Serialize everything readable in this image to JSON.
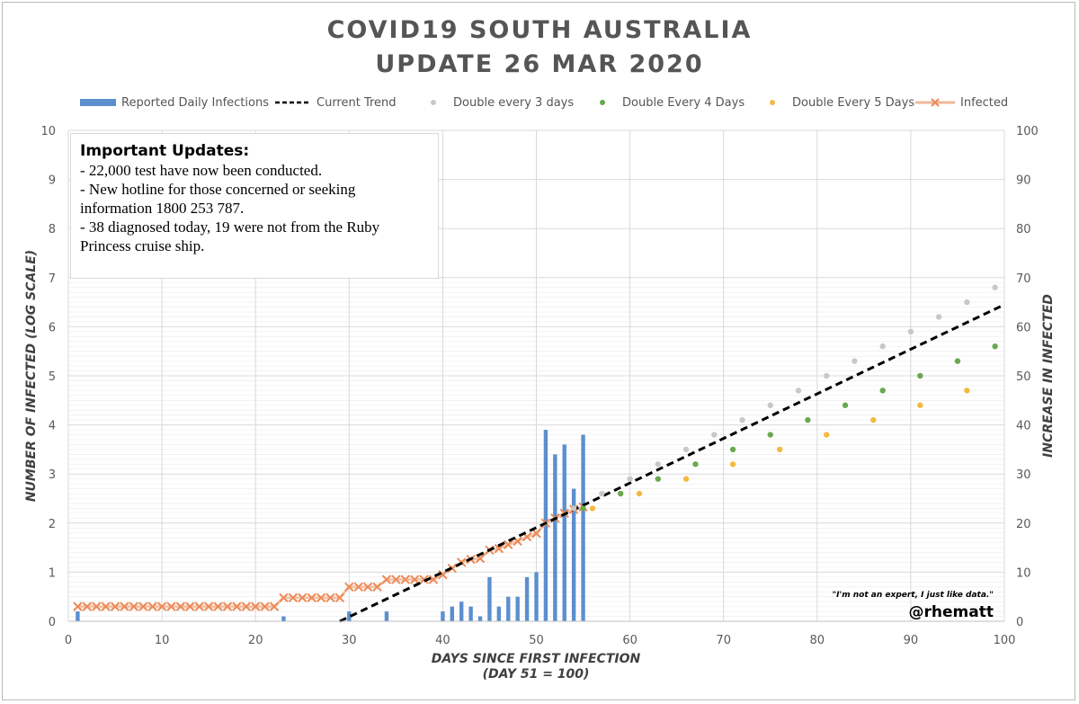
{
  "title": {
    "line1": "COVID19 SOUTH AUSTRALIA",
    "line2": "UPDATE 26 MAR 2020"
  },
  "legend": {
    "bar": "Reported Daily Infections",
    "trend": "Current Trend",
    "double3": "Double every 3 days",
    "double4": "Double Every 4 Days",
    "double5": "Double Every 5 Days",
    "infected": "Infected"
  },
  "annotation": {
    "heading": "Important Updates:",
    "lines": [
      "- 22,000 test have now been conducted.",
      "- New hotline for those concerned or seeking information 1800 253 787.",
      "- 38 diagnosed today, 19 were not from the Ruby Princess cruise ship."
    ]
  },
  "quote": "\"I'm not an expert, I just like data.\"",
  "handle": "@rhematt",
  "colors": {
    "bar": "#5b8fcf",
    "trend": "#000000",
    "double3": "#c8c8c8",
    "double4": "#6aa84f",
    "double5": "#f4b942",
    "infected": "#ec8a57",
    "grid": "#d9d9d9",
    "axisText": "#595959"
  },
  "chart_data": {
    "type": "bar+line+scatter",
    "xlabel": "DAYS SINCE FIRST INFECTION",
    "xlabel_sub": "(DAY 51 = 100)",
    "ylabel": "NUMBER OF INFECTED (LOG SCALE)",
    "y2label": "INCREASE IN INFECTED",
    "xlim": [
      0,
      100
    ],
    "ylim": [
      0,
      10
    ],
    "y2lim": [
      0,
      100
    ],
    "x_ticks": [
      0,
      10,
      20,
      30,
      40,
      50,
      60,
      70,
      80,
      90,
      100
    ],
    "y_ticks": [
      0,
      1,
      2,
      3,
      4,
      5,
      6,
      7,
      8,
      9,
      10
    ],
    "y2_ticks": [
      0,
      10,
      20,
      30,
      40,
      50,
      60,
      70,
      80,
      90,
      100
    ],
    "series": [
      {
        "name": "Reported Daily Infections",
        "type": "bar",
        "axis": "right",
        "points": [
          [
            1,
            2
          ],
          [
            23,
            1
          ],
          [
            30,
            2
          ],
          [
            34,
            2
          ],
          [
            40,
            2
          ],
          [
            41,
            3
          ],
          [
            42,
            4
          ],
          [
            43,
            3
          ],
          [
            44,
            1
          ],
          [
            45,
            9
          ],
          [
            46,
            3
          ],
          [
            47,
            5
          ],
          [
            48,
            5
          ],
          [
            49,
            9
          ],
          [
            50,
            10
          ],
          [
            51,
            39
          ],
          [
            52,
            34
          ],
          [
            53,
            36
          ],
          [
            54,
            27
          ],
          [
            55,
            38
          ]
        ]
      },
      {
        "name": "Current Trend",
        "type": "line-dashed",
        "axis": "left",
        "points": [
          [
            29,
            0
          ],
          [
            100,
            6.45
          ]
        ]
      },
      {
        "name": "Double every 3 days",
        "type": "scatter",
        "axis": "left",
        "points": [
          [
            54,
            2.3
          ],
          [
            57,
            2.6
          ],
          [
            60,
            2.9
          ],
          [
            63,
            3.2
          ],
          [
            66,
            3.5
          ],
          [
            69,
            3.8
          ],
          [
            72,
            4.1
          ],
          [
            75,
            4.4
          ],
          [
            78,
            4.7
          ],
          [
            81,
            5.0
          ],
          [
            84,
            5.3
          ],
          [
            87,
            5.6
          ],
          [
            90,
            5.9
          ],
          [
            93,
            6.2
          ],
          [
            96,
            6.5
          ],
          [
            99,
            6.8
          ]
        ]
      },
      {
        "name": "Double Every 4 Days",
        "type": "scatter",
        "axis": "left",
        "points": [
          [
            55,
            2.3
          ],
          [
            59,
            2.6
          ],
          [
            63,
            2.9
          ],
          [
            67,
            3.2
          ],
          [
            71,
            3.5
          ],
          [
            75,
            3.8
          ],
          [
            79,
            4.1
          ],
          [
            83,
            4.4
          ],
          [
            87,
            4.7
          ],
          [
            91,
            5.0
          ],
          [
            95,
            5.3
          ],
          [
            99,
            5.6
          ]
        ]
      },
      {
        "name": "Double Every 5 Days",
        "type": "scatter",
        "axis": "left",
        "points": [
          [
            56,
            2.3
          ],
          [
            61,
            2.6
          ],
          [
            66,
            2.9
          ],
          [
            71,
            3.2
          ],
          [
            76,
            3.5
          ],
          [
            81,
            3.8
          ],
          [
            86,
            4.1
          ],
          [
            91,
            4.4
          ],
          [
            96,
            4.7
          ]
        ]
      },
      {
        "name": "Infected",
        "type": "line-markers",
        "axis": "left",
        "points": [
          [
            1,
            0.3
          ],
          [
            2,
            0.3
          ],
          [
            3,
            0.3
          ],
          [
            4,
            0.3
          ],
          [
            5,
            0.3
          ],
          [
            6,
            0.3
          ],
          [
            7,
            0.3
          ],
          [
            8,
            0.3
          ],
          [
            9,
            0.3
          ],
          [
            10,
            0.3
          ],
          [
            11,
            0.3
          ],
          [
            12,
            0.3
          ],
          [
            13,
            0.3
          ],
          [
            14,
            0.3
          ],
          [
            15,
            0.3
          ],
          [
            16,
            0.3
          ],
          [
            17,
            0.3
          ],
          [
            18,
            0.3
          ],
          [
            19,
            0.3
          ],
          [
            20,
            0.3
          ],
          [
            21,
            0.3
          ],
          [
            22,
            0.3
          ],
          [
            23,
            0.48
          ],
          [
            24,
            0.48
          ],
          [
            25,
            0.48
          ],
          [
            26,
            0.48
          ],
          [
            27,
            0.48
          ],
          [
            28,
            0.48
          ],
          [
            29,
            0.48
          ],
          [
            30,
            0.7
          ],
          [
            31,
            0.7
          ],
          [
            32,
            0.7
          ],
          [
            33,
            0.7
          ],
          [
            34,
            0.85
          ],
          [
            35,
            0.85
          ],
          [
            36,
            0.85
          ],
          [
            37,
            0.85
          ],
          [
            38,
            0.85
          ],
          [
            39,
            0.85
          ],
          [
            40,
            0.95
          ],
          [
            41,
            1.08
          ],
          [
            42,
            1.2
          ],
          [
            43,
            1.26
          ],
          [
            44,
            1.28
          ],
          [
            45,
            1.45
          ],
          [
            46,
            1.48
          ],
          [
            47,
            1.56
          ],
          [
            48,
            1.63
          ],
          [
            49,
            1.72
          ],
          [
            50,
            1.79
          ],
          [
            51,
            2.0
          ],
          [
            52,
            2.1
          ],
          [
            53,
            2.2
          ],
          [
            54,
            2.28
          ],
          [
            55,
            2.33
          ]
        ]
      }
    ]
  }
}
